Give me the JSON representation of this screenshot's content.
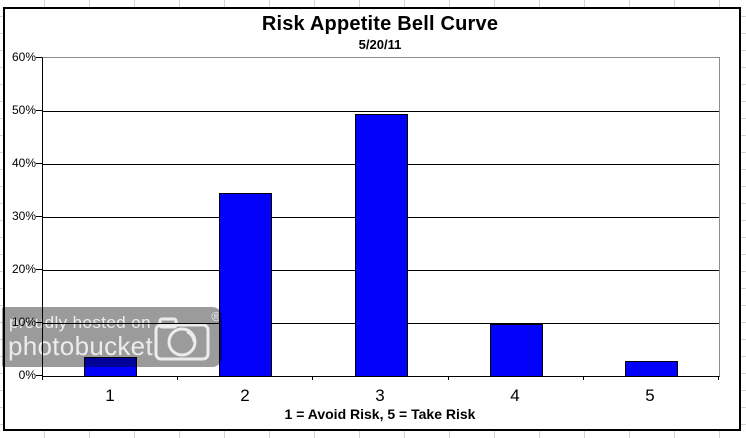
{
  "chart_data": {
    "type": "bar",
    "title": "Risk Appetite Bell Curve",
    "subtitle": "5/20/11",
    "categories": [
      "1",
      "2",
      "3",
      "4",
      "5"
    ],
    "values": [
      3.5,
      34.5,
      49.5,
      9.8,
      2.8
    ],
    "xlabel": "1 = Avoid Risk, 5 = Take Risk",
    "ylabel": "",
    "ylim": [
      0,
      60
    ],
    "ytick_step": 10,
    "ytick_labels_top_to_bottom": [
      "60%",
      "50%",
      "40%",
      "30%",
      "20%",
      "10%",
      "0%"
    ],
    "grid": true,
    "legend": "none",
    "bar_color": "#0202fa",
    "bar_border_color": "#000000",
    "gridline_color": "#000000",
    "plot_border_color": "#8c8c8c",
    "background_color": "#ffffff"
  },
  "watermark": {
    "line1": "proudly hosted on",
    "line2": "photobucket",
    "registered_symbol": "®",
    "overlay_color": "#9b9b9b"
  }
}
